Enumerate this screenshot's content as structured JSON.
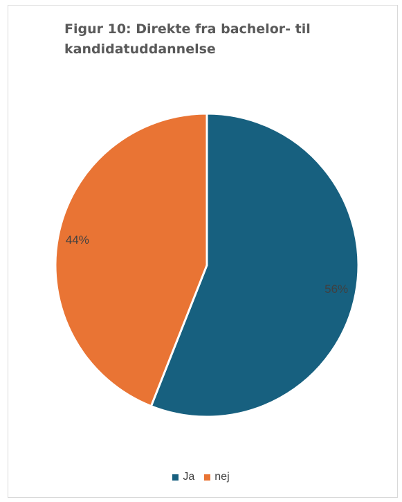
{
  "chart_data": {
    "type": "pie",
    "title": "Figur 10: Direkte fra bachelor- til kandidatuddannelse",
    "categories": [
      "Ja",
      "nej"
    ],
    "values": [
      56,
      44
    ],
    "labels": [
      "56%",
      "44%"
    ],
    "colors": [
      "#17607f",
      "#e97434"
    ],
    "legend_position": "bottom"
  }
}
